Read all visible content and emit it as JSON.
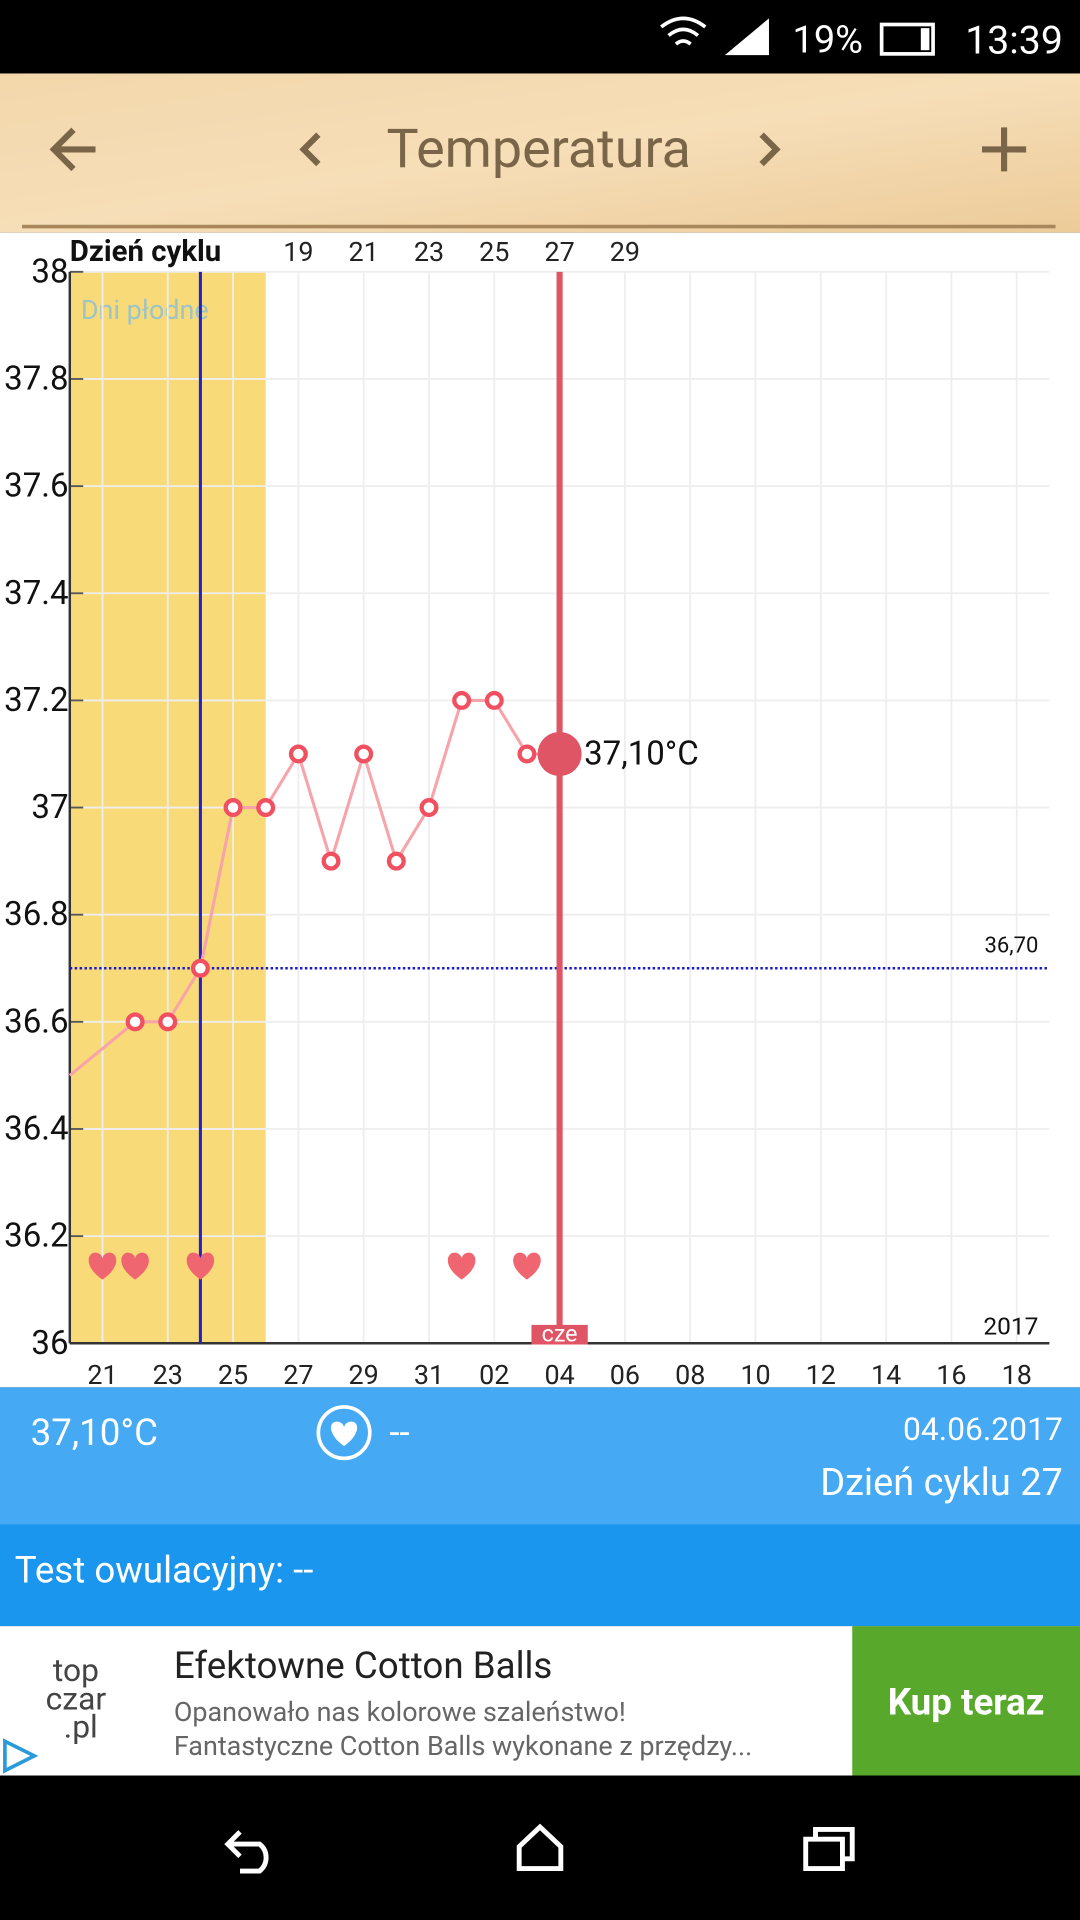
{
  "status_bar": {
    "battery": "19%",
    "time": "13:39"
  },
  "app_bar": {
    "title": "Temperatura"
  },
  "chart_data": {
    "type": "line",
    "x_axis_top_label": "Dzień cyklu",
    "categories": [
      null,
      "21",
      null,
      "23",
      null,
      "25",
      null,
      "27",
      null,
      "29",
      null,
      "31",
      null,
      "02",
      null,
      "04",
      null,
      "06",
      null,
      "08",
      null,
      "10",
      null,
      "12",
      null,
      "14",
      null,
      "16",
      null,
      "18",
      null
    ],
    "cycle_day_labels": [
      null,
      null,
      null,
      null,
      null,
      null,
      null,
      "19",
      null,
      "21",
      null,
      "23",
      null,
      "25",
      null,
      "27",
      null,
      "29",
      null,
      null,
      null,
      null,
      null,
      null,
      null,
      null,
      null,
      null,
      null,
      null,
      null
    ],
    "values": [
      36.5,
      null,
      36.6,
      36.6,
      36.7,
      37.0,
      37.0,
      37.1,
      36.9,
      37.1,
      36.9,
      37.0,
      37.2,
      37.2,
      37.1,
      37.1,
      null,
      null,
      null,
      null,
      null,
      null,
      null,
      null,
      null,
      null,
      null,
      null,
      null,
      null,
      null
    ],
    "color": "#f05060",
    "ylim": [
      36,
      38
    ],
    "yticks": [
      36,
      36.2,
      36.4,
      36.6,
      36.8,
      37,
      37.2,
      37.4,
      37.6,
      37.8,
      38
    ],
    "grid": true,
    "fertile_label": "Dni płodne",
    "fertile_range": [
      0,
      6
    ],
    "ovulation_index": 4,
    "coverline": 36.7,
    "coverline_label": "36,70",
    "year_label": "2017",
    "selected_index": 15,
    "selected_label": "cze",
    "selected_value_label": "37,10°C",
    "intercourse_indices": [
      1,
      2,
      4,
      12,
      14
    ]
  },
  "info_panel": {
    "temperature": "37,10°C",
    "intercourse": "--",
    "date": "04.06.2017",
    "cycle_day": "Dzień cyklu 27"
  },
  "ovulation_test": "Test owulacyjny: --",
  "ad": {
    "title": "Efektowne Cotton Balls",
    "line1": "Opanowało nas kolorowe szaleństwo!",
    "line2": "Fantastyczne Cotton Balls wykonane z przędzy...",
    "button": "Kup teraz",
    "logo": [
      "top",
      "czar",
      ".pl"
    ]
  }
}
